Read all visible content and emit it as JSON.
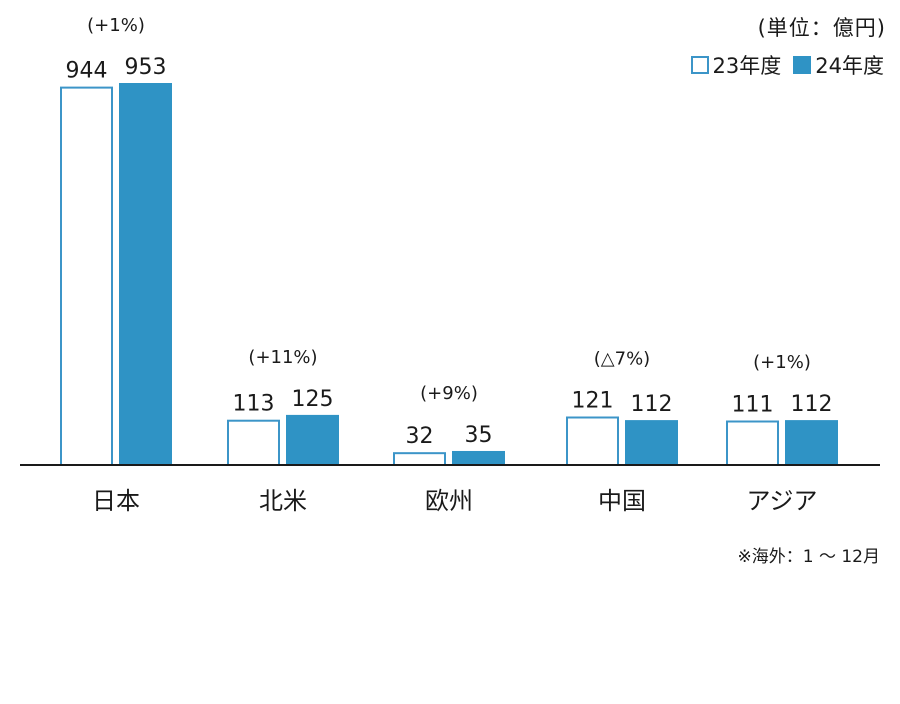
{
  "chart_data": {
    "type": "bar",
    "unit_label": "(単位：億円)",
    "categories": [
      "日本",
      "北米",
      "欧州",
      "中国",
      "アジア"
    ],
    "series": [
      {
        "name": "23年度",
        "values": [
          944,
          113,
          32,
          121,
          111
        ],
        "color": "#3c95c8",
        "style": "outline"
      },
      {
        "name": "24年度",
        "values": [
          953,
          125,
          35,
          112,
          112
        ],
        "color": "#2f93c5",
        "style": "filled"
      }
    ],
    "change_labels": [
      "(+1%)",
      "(+11%)",
      "(+9%)",
      "(△7%)",
      "(+1%)"
    ],
    "ylim": [
      0,
      953
    ],
    "footnote": "※海外：1 〜 12月"
  }
}
